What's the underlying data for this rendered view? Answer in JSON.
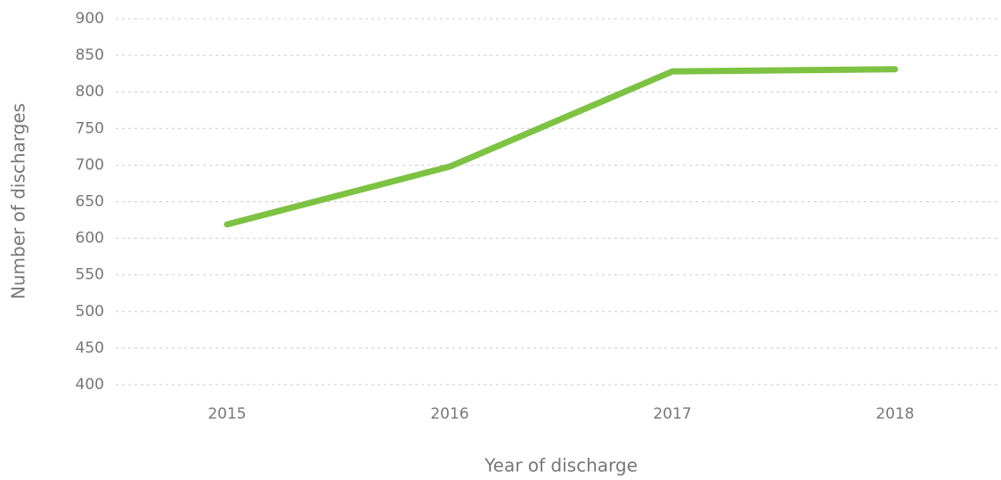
{
  "chart_data": {
    "type": "line",
    "x_label": "Year of discharge",
    "y_label": "Number of discharges",
    "categories": [
      "2015",
      "2016",
      "2017",
      "2018"
    ],
    "series": [
      {
        "name": "Number of discharges",
        "color": "#7dc242",
        "values": [
          619,
          698,
          828,
          831
        ]
      }
    ],
    "ylim": [
      400,
      900
    ],
    "yticks": [
      400,
      450,
      500,
      550,
      600,
      650,
      700,
      750,
      800,
      850,
      900
    ],
    "grid": true
  }
}
